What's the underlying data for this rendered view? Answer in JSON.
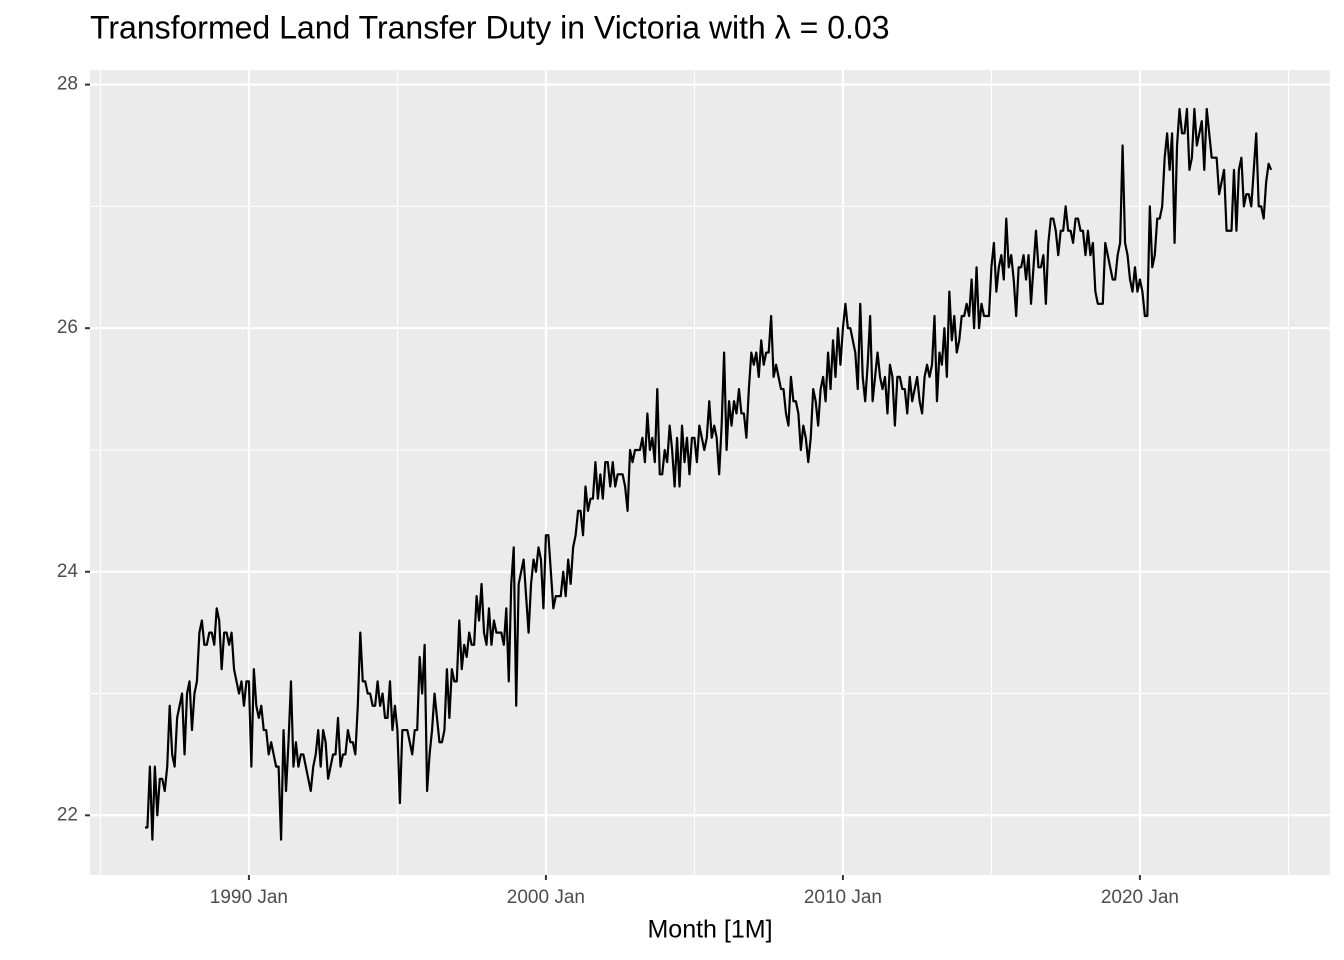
{
  "chart_data": {
    "type": "line",
    "title": "Transformed Land Transfer Duty in Victoria with λ = 0.03",
    "x_label": "Month [1M]",
    "color": "#000000",
    "grid": true,
    "xlim": [
      1984.65,
      2026.4
    ],
    "xticks": [
      {
        "value": 1990,
        "label": "1990 Jan"
      },
      {
        "value": 2000,
        "label": "2000 Jan"
      },
      {
        "value": 2010,
        "label": "2010 Jan"
      },
      {
        "value": 2020,
        "label": "2020 Jan"
      }
    ],
    "ylim": [
      21.51,
      28.12
    ],
    "yticks": [
      22,
      24,
      26,
      28
    ],
    "x": [
      "1986 Jul",
      "1986 Aug",
      "1986 Sep",
      "1986 Oct",
      "1986 Nov",
      "1986 Dec",
      "1987 Jan",
      "1987 Feb",
      "1987 Mar",
      "1987 Apr",
      "1987 May",
      "1987 Jun",
      "1987 Jul",
      "1987 Aug",
      "1987 Sep",
      "1987 Oct",
      "1987 Nov",
      "1987 Dec",
      "1988 Jan",
      "1988 Feb",
      "1988 Mar",
      "1988 Apr",
      "1988 May",
      "1988 Jun",
      "1988 Jul",
      "1988 Aug",
      "1988 Sep",
      "1988 Oct",
      "1988 Nov",
      "1988 Dec",
      "1989 Jan",
      "1989 Feb",
      "1989 Mar",
      "1989 Apr",
      "1989 May",
      "1989 Jun",
      "1989 Jul",
      "1989 Aug",
      "1989 Sep",
      "1989 Oct",
      "1989 Nov",
      "1989 Dec",
      "1990 Jan",
      "1990 Feb",
      "1990 Mar",
      "1990 Apr",
      "1990 May",
      "1990 Jun",
      "1990 Jul",
      "1990 Aug",
      "1990 Sep",
      "1990 Oct",
      "1990 Nov",
      "1990 Dec",
      "1991 Jan",
      "1991 Feb",
      "1991 Mar",
      "1991 Apr",
      "1991 May",
      "1991 Jun",
      "1991 Jul",
      "1991 Aug",
      "1991 Sep",
      "1991 Oct",
      "1991 Nov",
      "1991 Dec",
      "1992 Jan",
      "1992 Feb",
      "1992 Mar",
      "1992 Apr",
      "1992 May",
      "1992 Jun",
      "1992 Jul",
      "1992 Aug",
      "1992 Sep",
      "1992 Oct",
      "1992 Nov",
      "1992 Dec",
      "1993 Jan",
      "1993 Feb",
      "1993 Mar",
      "1993 Apr",
      "1993 May",
      "1993 Jun",
      "1993 Jul",
      "1993 Aug",
      "1993 Sep",
      "1993 Oct",
      "1993 Nov",
      "1993 Dec",
      "1994 Jan",
      "1994 Feb",
      "1994 Mar",
      "1994 Apr",
      "1994 May",
      "1994 Jun",
      "1994 Jul",
      "1994 Aug",
      "1994 Sep",
      "1994 Oct",
      "1994 Nov",
      "1994 Dec",
      "1995 Jan",
      "1995 Feb",
      "1995 Mar",
      "1995 Apr",
      "1995 May",
      "1995 Jun",
      "1995 Jul",
      "1995 Aug",
      "1995 Sep",
      "1995 Oct",
      "1995 Nov",
      "1995 Dec",
      "1996 Jan",
      "1996 Feb",
      "1996 Mar",
      "1996 Apr",
      "1996 May",
      "1996 Jun",
      "1996 Jul",
      "1996 Aug",
      "1996 Sep",
      "1996 Oct",
      "1996 Nov",
      "1996 Dec",
      "1997 Jan",
      "1997 Feb",
      "1997 Mar",
      "1997 Apr",
      "1997 May",
      "1997 Jun",
      "1997 Jul",
      "1997 Aug",
      "1997 Sep",
      "1997 Oct",
      "1997 Nov",
      "1997 Dec",
      "1998 Jan",
      "1998 Feb",
      "1998 Mar",
      "1998 Apr",
      "1998 May",
      "1998 Jun",
      "1998 Jul",
      "1998 Aug",
      "1998 Sep",
      "1998 Oct",
      "1998 Nov",
      "1998 Dec",
      "1999 Jan",
      "1999 Feb",
      "1999 Mar",
      "1999 Apr",
      "1999 May",
      "1999 Jun",
      "1999 Jul",
      "1999 Aug",
      "1999 Sep",
      "1999 Oct",
      "1999 Nov",
      "1999 Dec",
      "2000 Jan",
      "2000 Feb",
      "2000 Mar",
      "2000 Apr",
      "2000 May",
      "2000 Jun",
      "2000 Jul",
      "2000 Aug",
      "2000 Sep",
      "2000 Oct",
      "2000 Nov",
      "2000 Dec",
      "2001 Jan",
      "2001 Feb",
      "2001 Mar",
      "2001 Apr",
      "2001 May",
      "2001 Jun",
      "2001 Jul",
      "2001 Aug",
      "2001 Sep",
      "2001 Oct",
      "2001 Nov",
      "2001 Dec",
      "2002 Jan",
      "2002 Feb",
      "2002 Mar",
      "2002 Apr",
      "2002 May",
      "2002 Jun",
      "2002 Jul",
      "2002 Aug",
      "2002 Sep",
      "2002 Oct",
      "2002 Nov",
      "2002 Dec",
      "2003 Jan",
      "2003 Feb",
      "2003 Mar",
      "2003 Apr",
      "2003 May",
      "2003 Jun",
      "2003 Jul",
      "2003 Aug",
      "2003 Sep",
      "2003 Oct",
      "2003 Nov",
      "2003 Dec",
      "2004 Jan",
      "2004 Feb",
      "2004 Mar",
      "2004 Apr",
      "2004 May",
      "2004 Jun",
      "2004 Jul",
      "2004 Aug",
      "2004 Sep",
      "2004 Oct",
      "2004 Nov",
      "2004 Dec",
      "2005 Jan",
      "2005 Feb",
      "2005 Mar",
      "2005 Apr",
      "2005 May",
      "2005 Jun",
      "2005 Jul",
      "2005 Aug",
      "2005 Sep",
      "2005 Oct",
      "2005 Nov",
      "2005 Dec",
      "2006 Jan",
      "2006 Feb",
      "2006 Mar",
      "2006 Apr",
      "2006 May",
      "2006 Jun",
      "2006 Jul",
      "2006 Aug",
      "2006 Sep",
      "2006 Oct",
      "2006 Nov",
      "2006 Dec",
      "2007 Jan",
      "2007 Feb",
      "2007 Mar",
      "2007 Apr",
      "2007 May",
      "2007 Jun",
      "2007 Jul",
      "2007 Aug",
      "2007 Sep",
      "2007 Oct",
      "2007 Nov",
      "2007 Dec",
      "2008 Jan",
      "2008 Feb",
      "2008 Mar",
      "2008 Apr",
      "2008 May",
      "2008 Jun",
      "2008 Jul",
      "2008 Aug",
      "2008 Sep",
      "2008 Oct",
      "2008 Nov",
      "2008 Dec",
      "2009 Jan",
      "2009 Feb",
      "2009 Mar",
      "2009 Apr",
      "2009 May",
      "2009 Jun",
      "2009 Jul",
      "2009 Aug",
      "2009 Sep",
      "2009 Oct",
      "2009 Nov",
      "2009 Dec",
      "2010 Jan",
      "2010 Feb",
      "2010 Mar",
      "2010 Apr",
      "2010 May",
      "2010 Jun",
      "2010 Jul",
      "2010 Aug",
      "2010 Sep",
      "2010 Oct",
      "2010 Nov",
      "2010 Dec",
      "2011 Jan",
      "2011 Feb",
      "2011 Mar",
      "2011 Apr",
      "2011 May",
      "2011 Jun",
      "2011 Jul",
      "2011 Aug",
      "2011 Sep",
      "2011 Oct",
      "2011 Nov",
      "2011 Dec",
      "2012 Jan",
      "2012 Feb",
      "2012 Mar",
      "2012 Apr",
      "2012 May",
      "2012 Jun",
      "2012 Jul",
      "2012 Aug",
      "2012 Sep",
      "2012 Oct",
      "2012 Nov",
      "2012 Dec",
      "2013 Jan",
      "2013 Feb",
      "2013 Mar",
      "2013 Apr",
      "2013 May",
      "2013 Jun",
      "2013 Jul",
      "2013 Aug",
      "2013 Sep",
      "2013 Oct",
      "2013 Nov",
      "2013 Dec",
      "2014 Jan",
      "2014 Feb",
      "2014 Mar",
      "2014 Apr",
      "2014 May",
      "2014 Jun",
      "2014 Jul",
      "2014 Aug",
      "2014 Sep",
      "2014 Oct",
      "2014 Nov",
      "2014 Dec",
      "2015 Jan",
      "2015 Feb",
      "2015 Mar",
      "2015 Apr",
      "2015 May",
      "2015 Jun",
      "2015 Jul",
      "2015 Aug",
      "2015 Sep",
      "2015 Oct",
      "2015 Nov",
      "2015 Dec",
      "2016 Jan",
      "2016 Feb",
      "2016 Mar",
      "2016 Apr",
      "2016 May",
      "2016 Jun",
      "2016 Jul",
      "2016 Aug",
      "2016 Sep",
      "2016 Oct",
      "2016 Nov",
      "2016 Dec",
      "2017 Jan",
      "2017 Feb",
      "2017 Mar",
      "2017 Apr",
      "2017 May",
      "2017 Jun",
      "2017 Jul",
      "2017 Aug",
      "2017 Sep",
      "2017 Oct",
      "2017 Nov",
      "2017 Dec",
      "2018 Jan",
      "2018 Feb",
      "2018 Mar",
      "2018 Apr",
      "2018 May",
      "2018 Jun",
      "2018 Jul",
      "2018 Aug",
      "2018 Sep",
      "2018 Oct",
      "2018 Nov",
      "2018 Dec",
      "2019 Jan",
      "2019 Feb",
      "2019 Mar",
      "2019 Apr",
      "2019 May",
      "2019 Jun",
      "2019 Jul",
      "2019 Aug",
      "2019 Sep",
      "2019 Oct",
      "2019 Nov",
      "2019 Dec",
      "2020 Jan",
      "2020 Feb",
      "2020 Mar",
      "2020 Apr",
      "2020 May",
      "2020 Jun",
      "2020 Jul",
      "2020 Aug",
      "2020 Sep",
      "2020 Oct",
      "2020 Nov",
      "2020 Dec",
      "2021 Jan",
      "2021 Feb",
      "2021 Mar",
      "2021 Apr",
      "2021 May",
      "2021 Jun",
      "2021 Jul",
      "2021 Aug",
      "2021 Sep",
      "2021 Oct",
      "2021 Nov",
      "2021 Dec",
      "2022 Jan",
      "2022 Feb",
      "2022 Mar",
      "2022 Apr",
      "2022 May",
      "2022 Jun",
      "2022 Jul",
      "2022 Aug",
      "2022 Sep",
      "2022 Oct",
      "2022 Nov",
      "2022 Dec",
      "2023 Jan",
      "2023 Feb",
      "2023 Mar",
      "2023 Apr",
      "2023 May",
      "2023 Jun",
      "2023 Jul",
      "2023 Aug",
      "2023 Sep",
      "2023 Oct",
      "2023 Nov",
      "2023 Dec",
      "2024 Jan",
      "2024 Feb",
      "2024 Mar",
      "2024 Apr",
      "2024 May",
      "2024 Jun"
    ],
    "values": [
      21.9,
      21.9,
      22.4,
      21.8,
      22.4,
      22.0,
      22.3,
      22.3,
      22.2,
      22.4,
      22.9,
      22.5,
      22.4,
      22.8,
      22.9,
      23.0,
      22.5,
      23.0,
      23.1,
      22.7,
      23.0,
      23.1,
      23.5,
      23.6,
      23.4,
      23.4,
      23.5,
      23.5,
      23.4,
      23.7,
      23.6,
      23.2,
      23.5,
      23.5,
      23.4,
      23.5,
      23.2,
      23.1,
      23.0,
      23.1,
      22.9,
      23.1,
      23.1,
      22.4,
      23.2,
      22.9,
      22.8,
      22.9,
      22.7,
      22.7,
      22.5,
      22.6,
      22.5,
      22.4,
      22.4,
      21.8,
      22.7,
      22.2,
      22.6,
      23.1,
      22.4,
      22.6,
      22.4,
      22.5,
      22.5,
      22.4,
      22.3,
      22.2,
      22.4,
      22.5,
      22.7,
      22.4,
      22.7,
      22.6,
      22.3,
      22.4,
      22.5,
      22.5,
      22.8,
      22.4,
      22.5,
      22.5,
      22.7,
      22.6,
      22.6,
      22.5,
      22.9,
      23.5,
      23.1,
      23.1,
      23.0,
      23.0,
      22.9,
      22.9,
      23.1,
      22.9,
      23.0,
      22.8,
      22.8,
      23.1,
      22.7,
      22.9,
      22.7,
      22.1,
      22.7,
      22.7,
      22.7,
      22.6,
      22.5,
      22.7,
      22.7,
      23.3,
      23.0,
      23.4,
      22.2,
      22.5,
      22.7,
      23.0,
      22.8,
      22.6,
      22.6,
      22.7,
      23.2,
      22.8,
      23.2,
      23.1,
      23.1,
      23.6,
      23.2,
      23.4,
      23.3,
      23.5,
      23.4,
      23.4,
      23.8,
      23.6,
      23.9,
      23.5,
      23.4,
      23.7,
      23.4,
      23.6,
      23.5,
      23.5,
      23.5,
      23.4,
      23.7,
      23.1,
      23.9,
      24.2,
      22.9,
      23.9,
      24.0,
      24.1,
      23.8,
      23.5,
      23.9,
      24.1,
      24.0,
      24.2,
      24.1,
      23.7,
      24.3,
      24.3,
      24.0,
      23.7,
      23.8,
      23.8,
      23.8,
      24.0,
      23.8,
      24.1,
      23.9,
      24.2,
      24.3,
      24.5,
      24.5,
      24.3,
      24.7,
      24.5,
      24.6,
      24.6,
      24.9,
      24.6,
      24.8,
      24.6,
      24.9,
      24.9,
      24.7,
      24.9,
      24.7,
      24.8,
      24.8,
      24.8,
      24.7,
      24.5,
      25.0,
      24.9,
      25.0,
      25.0,
      25.0,
      25.1,
      24.9,
      25.3,
      25.0,
      25.1,
      24.9,
      25.5,
      24.8,
      24.8,
      25.0,
      24.9,
      25.2,
      25.0,
      24.7,
      25.1,
      24.7,
      25.2,
      24.9,
      25.1,
      24.8,
      25.1,
      25.1,
      24.9,
      25.2,
      25.1,
      25.0,
      25.1,
      25.4,
      25.1,
      25.2,
      25.1,
      24.8,
      25.2,
      25.8,
      25.0,
      25.4,
      25.2,
      25.4,
      25.3,
      25.5,
      25.3,
      25.3,
      25.1,
      25.5,
      25.8,
      25.7,
      25.8,
      25.6,
      25.9,
      25.7,
      25.8,
      25.8,
      26.1,
      25.6,
      25.7,
      25.6,
      25.5,
      25.5,
      25.3,
      25.2,
      25.6,
      25.4,
      25.4,
      25.3,
      25.0,
      25.2,
      25.1,
      24.9,
      25.1,
      25.5,
      25.4,
      25.2,
      25.5,
      25.6,
      25.4,
      25.8,
      25.5,
      25.9,
      25.6,
      26.0,
      25.7,
      26.0,
      26.2,
      26.0,
      26.0,
      25.9,
      25.8,
      25.5,
      26.2,
      25.6,
      25.4,
      25.7,
      26.1,
      25.4,
      25.6,
      25.8,
      25.6,
      25.5,
      25.6,
      25.3,
      25.7,
      25.6,
      25.2,
      25.6,
      25.6,
      25.5,
      25.5,
      25.3,
      25.6,
      25.4,
      25.5,
      25.6,
      25.4,
      25.3,
      25.6,
      25.7,
      25.6,
      25.7,
      26.1,
      25.4,
      25.8,
      25.7,
      26.0,
      25.6,
      26.3,
      25.9,
      26.1,
      25.8,
      25.9,
      26.1,
      26.1,
      26.2,
      26.1,
      26.4,
      26.0,
      26.5,
      26.0,
      26.2,
      26.1,
      26.1,
      26.1,
      26.5,
      26.7,
      26.3,
      26.5,
      26.6,
      26.4,
      26.9,
      26.5,
      26.6,
      26.4,
      26.1,
      26.5,
      26.5,
      26.6,
      26.4,
      26.6,
      26.2,
      26.5,
      26.8,
      26.5,
      26.5,
      26.6,
      26.2,
      26.7,
      26.9,
      26.9,
      26.8,
      26.6,
      26.8,
      26.8,
      27.0,
      26.8,
      26.8,
      26.7,
      26.9,
      26.9,
      26.8,
      26.8,
      26.6,
      26.8,
      26.6,
      26.7,
      26.3,
      26.2,
      26.2,
      26.2,
      26.7,
      26.6,
      26.5,
      26.4,
      26.4,
      26.6,
      26.7,
      27.5,
      26.7,
      26.6,
      26.4,
      26.3,
      26.5,
      26.3,
      26.4,
      26.3,
      26.1,
      26.1,
      27.0,
      26.5,
      26.6,
      26.9,
      26.9,
      27.0,
      27.4,
      27.6,
      27.3,
      27.6,
      26.7,
      27.5,
      27.8,
      27.6,
      27.6,
      27.8,
      27.3,
      27.4,
      27.8,
      27.5,
      27.6,
      27.7,
      27.3,
      27.8,
      27.6,
      27.4,
      27.4,
      27.4,
      27.1,
      27.2,
      27.3,
      26.8,
      26.8,
      26.8,
      27.3,
      26.8,
      27.3,
      27.4,
      27.0,
      27.1,
      27.1,
      27.0,
      27.3,
      27.6,
      27.0,
      27.0,
      26.9,
      27.2,
      27.35,
      27.3
    ]
  }
}
